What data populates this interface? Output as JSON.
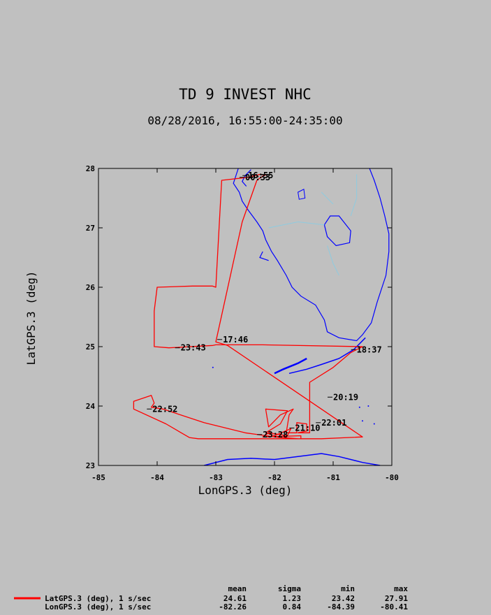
{
  "chart_data": {
    "type": "line",
    "title": "TD 9 INVEST NHC",
    "subtitle": "08/28/2016, 16:55:00-24:35:00",
    "xlabel": "LonGPS.3 (deg)",
    "ylabel": "LatGPS.3 (deg)",
    "xlim": [
      -85,
      -80
    ],
    "ylim": [
      23,
      28
    ],
    "xticks": [
      "-85",
      "-84",
      "-83",
      "-82",
      "-81",
      "-80"
    ],
    "yticks": [
      "23",
      "24",
      "25",
      "26",
      "27",
      "28"
    ],
    "grid": false,
    "colors": {
      "track": "#ff0000",
      "coast": "#0000ff",
      "border": "#8ecbe0",
      "background": "#c0c0c0"
    },
    "series": [
      {
        "name": "LatGPS.3 (deg), 1 s/sec",
        "x": [
          -82.25,
          -82.45,
          -82.9,
          -83.0,
          -83.06,
          -83.06,
          -83.4,
          -84.0,
          -84.05,
          -84.05,
          -83.8,
          -83.05,
          -83.0,
          -82.4,
          -82.2,
          -80.5,
          -80.7,
          -81.0,
          -81.4,
          -81.4,
          -81.6,
          -81.45,
          -81.45,
          -81.62,
          -81.62,
          -81.8,
          -81.75,
          -81.68,
          -81.9,
          -82.1,
          -82.15,
          -81.78,
          -81.9,
          -82.15,
          -82.0,
          -81.72,
          -81.78,
          -82.1,
          -82.2,
          -81.55,
          -81.55,
          -82.05,
          -83.3,
          -83.45,
          -83.85,
          -84.4,
          -84.4,
          -84.1,
          -84.05,
          -84.1,
          -83.9,
          -83.2,
          -82.5,
          -82.0,
          -81.6,
          -81.2,
          -80.5,
          -82.8,
          -83.0,
          -82.55,
          -82.3,
          -82.2,
          -82.15,
          -82.25
        ],
        "y": [
          27.9,
          27.85,
          27.8,
          26.0,
          26.02,
          26.02,
          26.02,
          26.0,
          25.6,
          25.0,
          24.98,
          25.02,
          25.03,
          25.03,
          25.03,
          25.0,
          24.9,
          24.65,
          24.4,
          23.55,
          23.55,
          23.58,
          23.7,
          23.72,
          23.55,
          23.55,
          23.85,
          23.95,
          23.85,
          23.65,
          23.95,
          23.92,
          23.7,
          23.55,
          23.5,
          23.62,
          23.5,
          23.55,
          23.48,
          23.5,
          23.45,
          23.45,
          23.45,
          23.47,
          23.7,
          23.95,
          24.08,
          24.18,
          24.05,
          23.98,
          23.95,
          23.72,
          23.55,
          23.48,
          23.45,
          23.45,
          23.48,
          25.02,
          25.08,
          27.1,
          27.8,
          27.87,
          27.89,
          27.9
        ]
      },
      {
        "name": "LonGPS.3 (deg), 1 s/sec"
      }
    ],
    "annotations": [
      {
        "text": "16:55",
        "x": -82.45,
        "y": 27.88
      },
      {
        "text": "00:33",
        "x": -82.5,
        "y": 27.85
      },
      {
        "text": "17:46",
        "x": -82.88,
        "y": 25.12
      },
      {
        "text": "18:37",
        "x": -80.6,
        "y": 24.95
      },
      {
        "text": "20:19",
        "x": -81.0,
        "y": 24.15
      },
      {
        "text": "22:01",
        "x": -81.2,
        "y": 23.72
      },
      {
        "text": "21:10",
        "x": -81.65,
        "y": 23.63
      },
      {
        "text": "23:28",
        "x": -82.2,
        "y": 23.52
      },
      {
        "text": "22:52",
        "x": -84.08,
        "y": 23.95
      },
      {
        "text": "23:43",
        "x": -83.6,
        "y": 24.98
      }
    ],
    "stats": {
      "headers": [
        "mean",
        "sigma",
        "min",
        "max"
      ],
      "rows": [
        {
          "label": "LatGPS.3 (deg), 1 s/sec",
          "values": [
            "24.61",
            "1.23",
            "23.42",
            "27.91"
          ]
        },
        {
          "label": "LonGPS.3 (deg), 1 s/sec",
          "values": [
            "-82.26",
            "0.84",
            "-84.39",
            "-80.41"
          ]
        }
      ]
    }
  }
}
